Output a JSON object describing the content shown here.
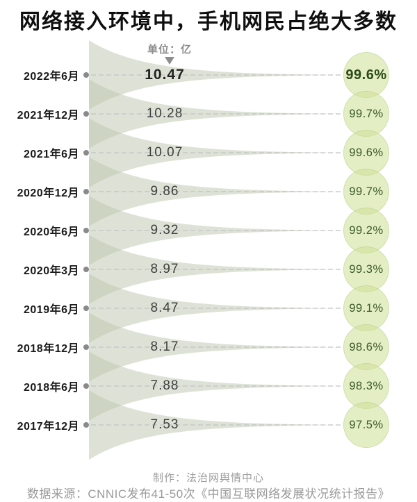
{
  "title": "网络接入环境中，手机网民占绝大多数",
  "unit_label": "单位：亿",
  "rows": [
    {
      "date": "2022年6月",
      "value": "10.47",
      "percent": "99.6%"
    },
    {
      "date": "2021年12月",
      "value": "10.28",
      "percent": "99.7%"
    },
    {
      "date": "2021年6月",
      "value": "10.07",
      "percent": "99.6%"
    },
    {
      "date": "2020年12月",
      "value": "9.86",
      "percent": "99.7%"
    },
    {
      "date": "2020年6月",
      "value": "9.32",
      "percent": "99.2%"
    },
    {
      "date": "2020年3月",
      "value": "8.97",
      "percent": "99.3%"
    },
    {
      "date": "2019年6月",
      "value": "8.47",
      "percent": "99.1%"
    },
    {
      "date": "2018年12月",
      "value": "8.17",
      "percent": "98.6%"
    },
    {
      "date": "2018年6月",
      "value": "7.88",
      "percent": "98.3%"
    },
    {
      "date": "2017年12月",
      "value": "7.53",
      "percent": "97.5%"
    }
  ],
  "footer": {
    "line1": "制作：法治网舆情中心",
    "line2": "数据来源：CNNIC发布41-50次《中国互联网络发展状况统计报告》"
  },
  "colors": {
    "funnel_sage": "#bec5ae",
    "bubble_green": "#cde096",
    "percent_text_dark": "#2b4a17",
    "percent_text": "#3a5a26",
    "dot_grey": "#8a8a8a",
    "dash_grey": "#c2c2c2",
    "label_grey": "#8d8d8d",
    "footer_grey": "#9b9b9b"
  },
  "chart_data": {
    "type": "table",
    "title": "网络接入环境中，手机网民占绝大多数",
    "unit": "亿",
    "categories": [
      "2022年6月",
      "2021年12月",
      "2021年6月",
      "2020年12月",
      "2020年6月",
      "2020年3月",
      "2019年6月",
      "2018年12月",
      "2018年6月",
      "2017年12月"
    ],
    "series": [
      {
        "name": "value_亿",
        "values": [
          10.47,
          10.28,
          10.07,
          9.86,
          9.32,
          8.97,
          8.47,
          8.17,
          7.88,
          7.53
        ]
      },
      {
        "name": "percent",
        "values": [
          99.6,
          99.7,
          99.6,
          99.7,
          99.2,
          99.3,
          99.1,
          98.6,
          98.3,
          97.5
        ]
      }
    ],
    "layout": "vertical funnel list, newest period at top, percentages in green circles at right"
  }
}
